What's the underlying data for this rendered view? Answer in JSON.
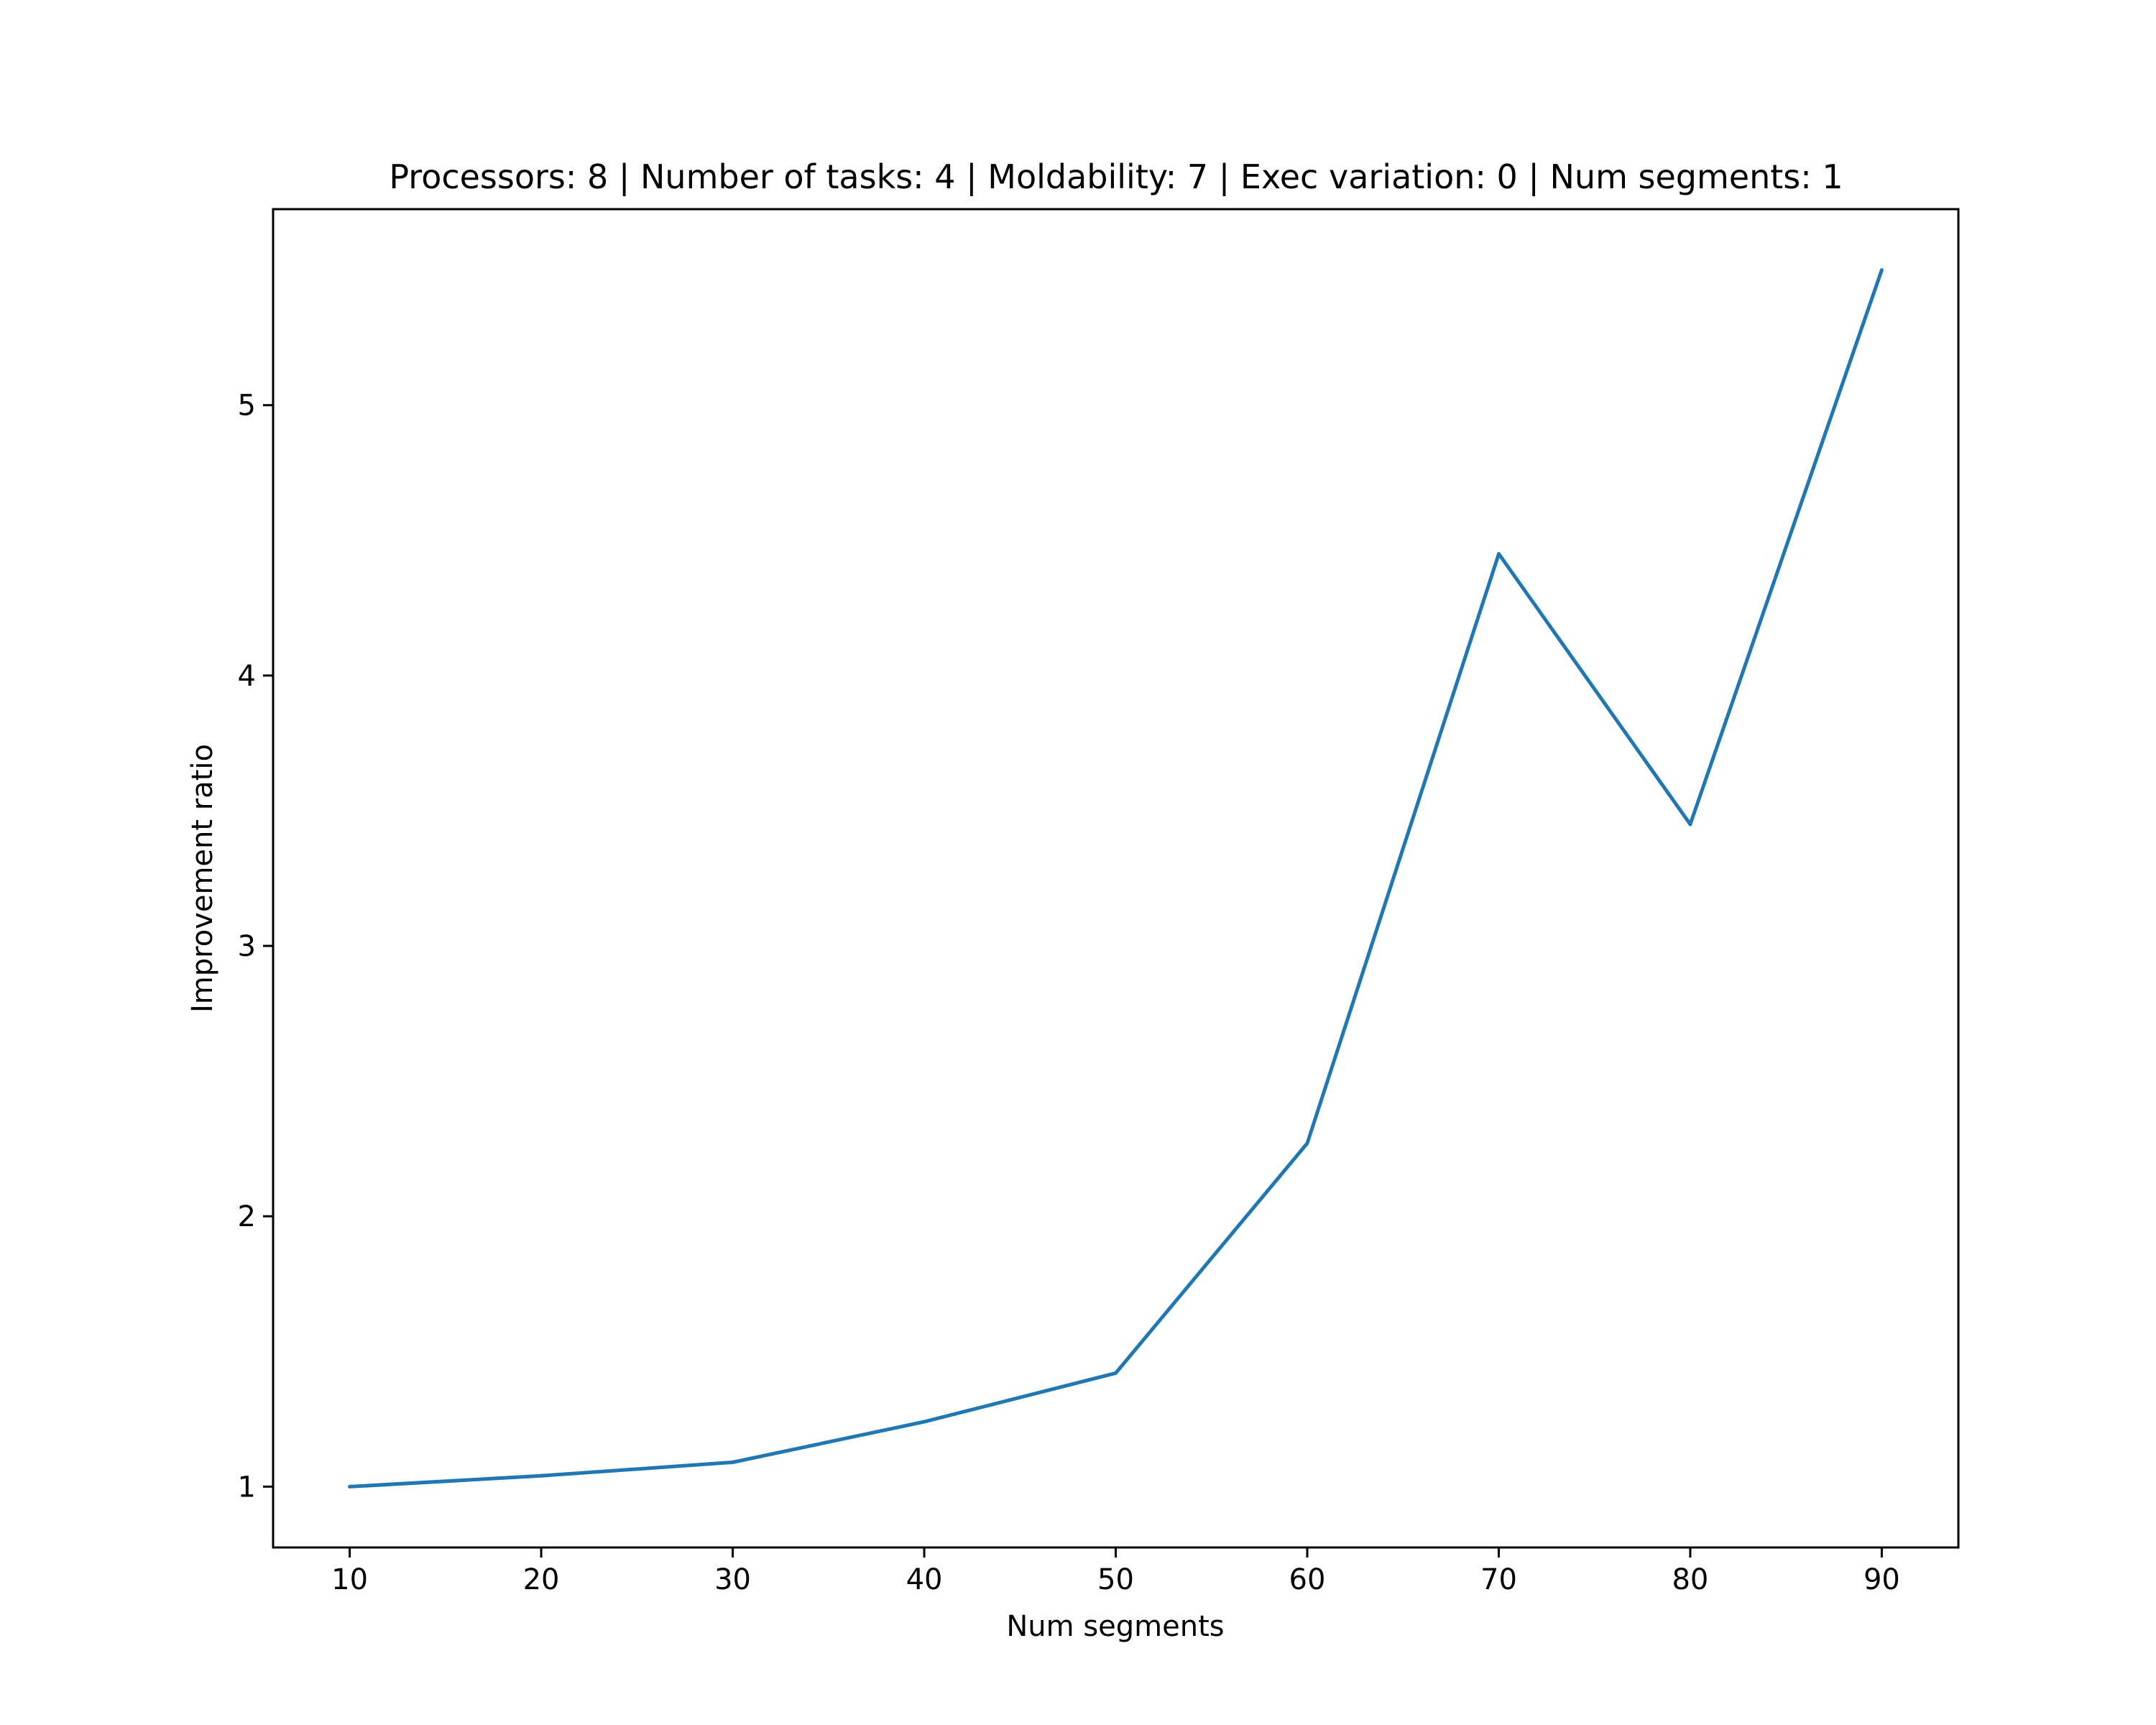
{
  "chart_data": {
    "type": "line",
    "title": "Processors: 8 | Number of tasks: 4 | Moldability: 7 | Exec variation: 0 | Num segments: 1",
    "xlabel": "Num segments",
    "ylabel": "Improvement ratio",
    "x": [
      10,
      20,
      30,
      40,
      50,
      60,
      70,
      80,
      90
    ],
    "series": [
      {
        "values": [
          1.0,
          1.04,
          1.09,
          1.24,
          1.42,
          2.27,
          4.45,
          3.45,
          5.5
        ],
        "color": "#1f77b4"
      }
    ],
    "xticks": [
      "10",
      "20",
      "30",
      "40",
      "50",
      "60",
      "70",
      "80",
      "90"
    ],
    "yticks": [
      "1",
      "2",
      "3",
      "4",
      "5"
    ],
    "xlim": [
      6,
      94
    ],
    "ylim": [
      0.775,
      5.725
    ],
    "grid": false,
    "legend": "none"
  }
}
